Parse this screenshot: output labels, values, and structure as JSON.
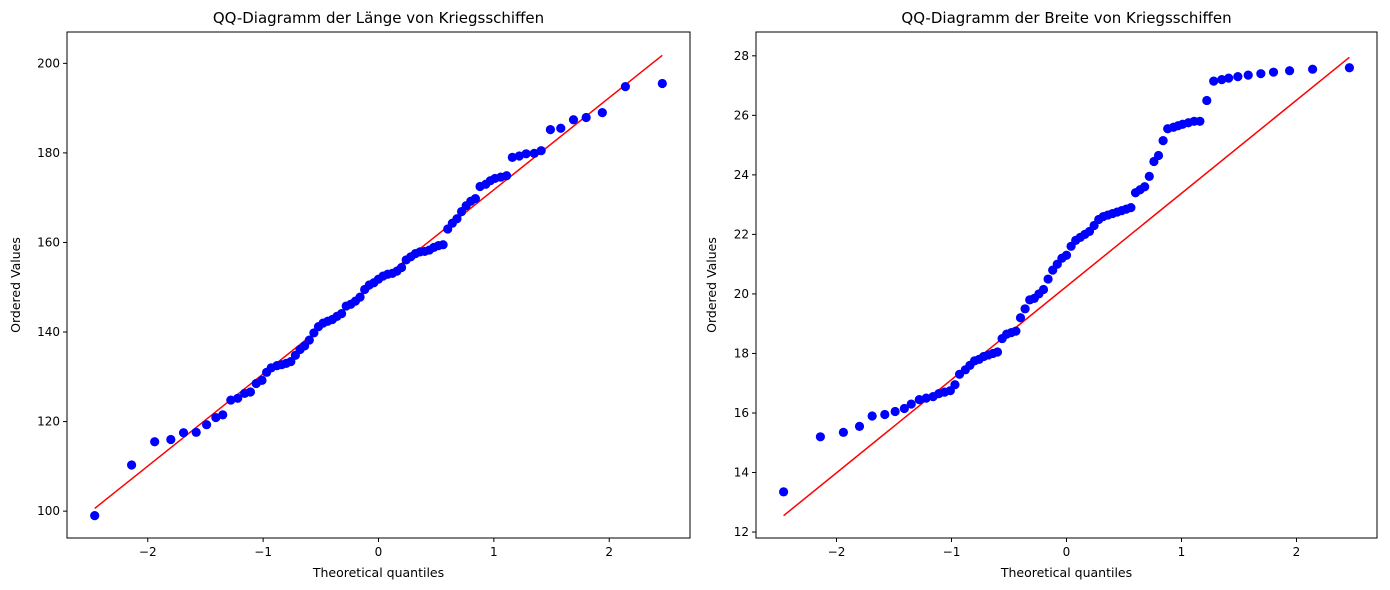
{
  "chart_data": [
    {
      "type": "scatter",
      "title": "QQ-Diagramm der Länge von Kriegsschiffen",
      "xlabel": "Theoretical quantiles",
      "ylabel": "Ordered Values",
      "xlim": [
        -2.7,
        2.7
      ],
      "ylim": [
        94,
        207
      ],
      "xticks": [
        -2,
        -1,
        0,
        1,
        2
      ],
      "xtick_labels": [
        "−2",
        "−1",
        "0",
        "1",
        "2"
      ],
      "yticks": [
        100,
        120,
        140,
        160,
        180,
        200
      ],
      "ytick_labels": [
        "100",
        "120",
        "140",
        "160",
        "180",
        "200"
      ],
      "grid": false,
      "marker_color": "#0000ff",
      "line_color": "#ff0000",
      "fit_line": {
        "x": [
          -2.46,
          2.46
        ],
        "y": [
          100.6,
          201.8
        ]
      },
      "points": {
        "x": [
          -2.46,
          -2.14,
          -1.94,
          -1.8,
          -1.69,
          -1.58,
          -1.49,
          -1.41,
          -1.35,
          -1.28,
          -1.22,
          -1.16,
          -1.11,
          -1.06,
          -1.01,
          -0.97,
          -0.93,
          -0.88,
          -0.84,
          -0.8,
          -0.76,
          -0.72,
          -0.68,
          -0.64,
          -0.6,
          -0.56,
          -0.52,
          -0.48,
          -0.44,
          -0.4,
          -0.36,
          -0.32,
          -0.28,
          -0.24,
          -0.2,
          -0.16,
          -0.12,
          -0.08,
          -0.04,
          0.0,
          0.04,
          0.08,
          0.12,
          0.16,
          0.2,
          0.24,
          0.28,
          0.32,
          0.36,
          0.4,
          0.44,
          0.48,
          0.52,
          0.56,
          0.6,
          0.64,
          0.68,
          0.72,
          0.76,
          0.8,
          0.84,
          0.88,
          0.93,
          0.97,
          1.01,
          1.06,
          1.11,
          1.16,
          1.22,
          1.28,
          1.35,
          1.41,
          1.49,
          1.58,
          1.69,
          1.8,
          1.94,
          2.14,
          2.46
        ],
        "y": [
          99.0,
          110.3,
          115.5,
          116.0,
          117.5,
          117.6,
          119.3,
          120.9,
          121.5,
          124.8,
          125.2,
          126.3,
          126.6,
          128.5,
          129.2,
          131.0,
          132.0,
          132.5,
          132.7,
          133.0,
          133.4,
          134.8,
          136.1,
          136.9,
          138.2,
          139.8,
          141.2,
          142.0,
          142.4,
          142.8,
          143.5,
          144.1,
          145.8,
          146.2,
          146.9,
          147.8,
          149.5,
          150.5,
          151.0,
          151.8,
          152.5,
          152.9,
          153.1,
          153.6,
          154.4,
          156.1,
          156.8,
          157.5,
          157.9,
          158.0,
          158.3,
          158.9,
          159.3,
          159.5,
          163.0,
          164.3,
          165.3,
          166.9,
          168.2,
          169.2,
          169.8,
          172.5,
          173.0,
          173.8,
          174.3,
          174.6,
          174.9,
          179.0,
          179.3,
          179.8,
          179.9,
          180.5,
          185.2,
          185.5,
          187.4,
          187.9,
          189.0,
          194.8,
          195.5
        ]
      }
    },
    {
      "type": "scatter",
      "title": "QQ-Diagramm der Breite von Kriegsschiffen",
      "xlabel": "Theoretical quantiles",
      "ylabel": "Ordered Values",
      "xlim": [
        -2.7,
        2.7
      ],
      "ylim": [
        11.8,
        28.8
      ],
      "xticks": [
        -2,
        -1,
        0,
        1,
        2
      ],
      "xtick_labels": [
        "−2",
        "−1",
        "0",
        "1",
        "2"
      ],
      "yticks": [
        12,
        14,
        16,
        18,
        20,
        22,
        24,
        26,
        28
      ],
      "ytick_labels": [
        "12",
        "14",
        "16",
        "18",
        "20",
        "22",
        "24",
        "26",
        "28"
      ],
      "grid": false,
      "marker_color": "#0000ff",
      "line_color": "#ff0000",
      "fit_line": {
        "x": [
          -2.46,
          2.46
        ],
        "y": [
          12.55,
          27.95
        ]
      },
      "points": {
        "x": [
          -2.46,
          -2.14,
          -1.94,
          -1.8,
          -1.69,
          -1.58,
          -1.49,
          -1.41,
          -1.35,
          -1.28,
          -1.22,
          -1.16,
          -1.11,
          -1.06,
          -1.01,
          -0.97,
          -0.93,
          -0.88,
          -0.84,
          -0.8,
          -0.76,
          -0.72,
          -0.68,
          -0.64,
          -0.6,
          -0.56,
          -0.52,
          -0.48,
          -0.44,
          -0.4,
          -0.36,
          -0.32,
          -0.28,
          -0.24,
          -0.2,
          -0.16,
          -0.12,
          -0.08,
          -0.04,
          0.0,
          0.04,
          0.08,
          0.12,
          0.16,
          0.2,
          0.24,
          0.28,
          0.32,
          0.36,
          0.4,
          0.44,
          0.48,
          0.52,
          0.56,
          0.6,
          0.64,
          0.68,
          0.72,
          0.76,
          0.8,
          0.84,
          0.88,
          0.93,
          0.97,
          1.01,
          1.06,
          1.11,
          1.16,
          1.22,
          1.28,
          1.35,
          1.41,
          1.49,
          1.58,
          1.69,
          1.8,
          1.94,
          2.14,
          2.46
        ],
        "y": [
          13.35,
          15.2,
          15.35,
          15.55,
          15.9,
          15.95,
          16.05,
          16.15,
          16.3,
          16.45,
          16.5,
          16.55,
          16.65,
          16.7,
          16.75,
          16.95,
          17.3,
          17.45,
          17.6,
          17.75,
          17.8,
          17.9,
          17.95,
          18.0,
          18.05,
          18.5,
          18.65,
          18.7,
          18.75,
          19.2,
          19.5,
          19.8,
          19.85,
          20.0,
          20.15,
          20.5,
          20.8,
          21.0,
          21.2,
          21.3,
          21.6,
          21.8,
          21.9,
          22.0,
          22.1,
          22.3,
          22.5,
          22.6,
          22.65,
          22.7,
          22.75,
          22.8,
          22.85,
          22.9,
          23.4,
          23.5,
          23.6,
          23.95,
          24.45,
          24.65,
          25.15,
          25.55,
          25.6,
          25.65,
          25.7,
          25.75,
          25.8,
          25.8,
          26.5,
          27.15,
          27.2,
          27.25,
          27.3,
          27.35,
          27.4,
          27.45,
          27.5,
          27.55,
          27.6
        ]
      }
    }
  ]
}
